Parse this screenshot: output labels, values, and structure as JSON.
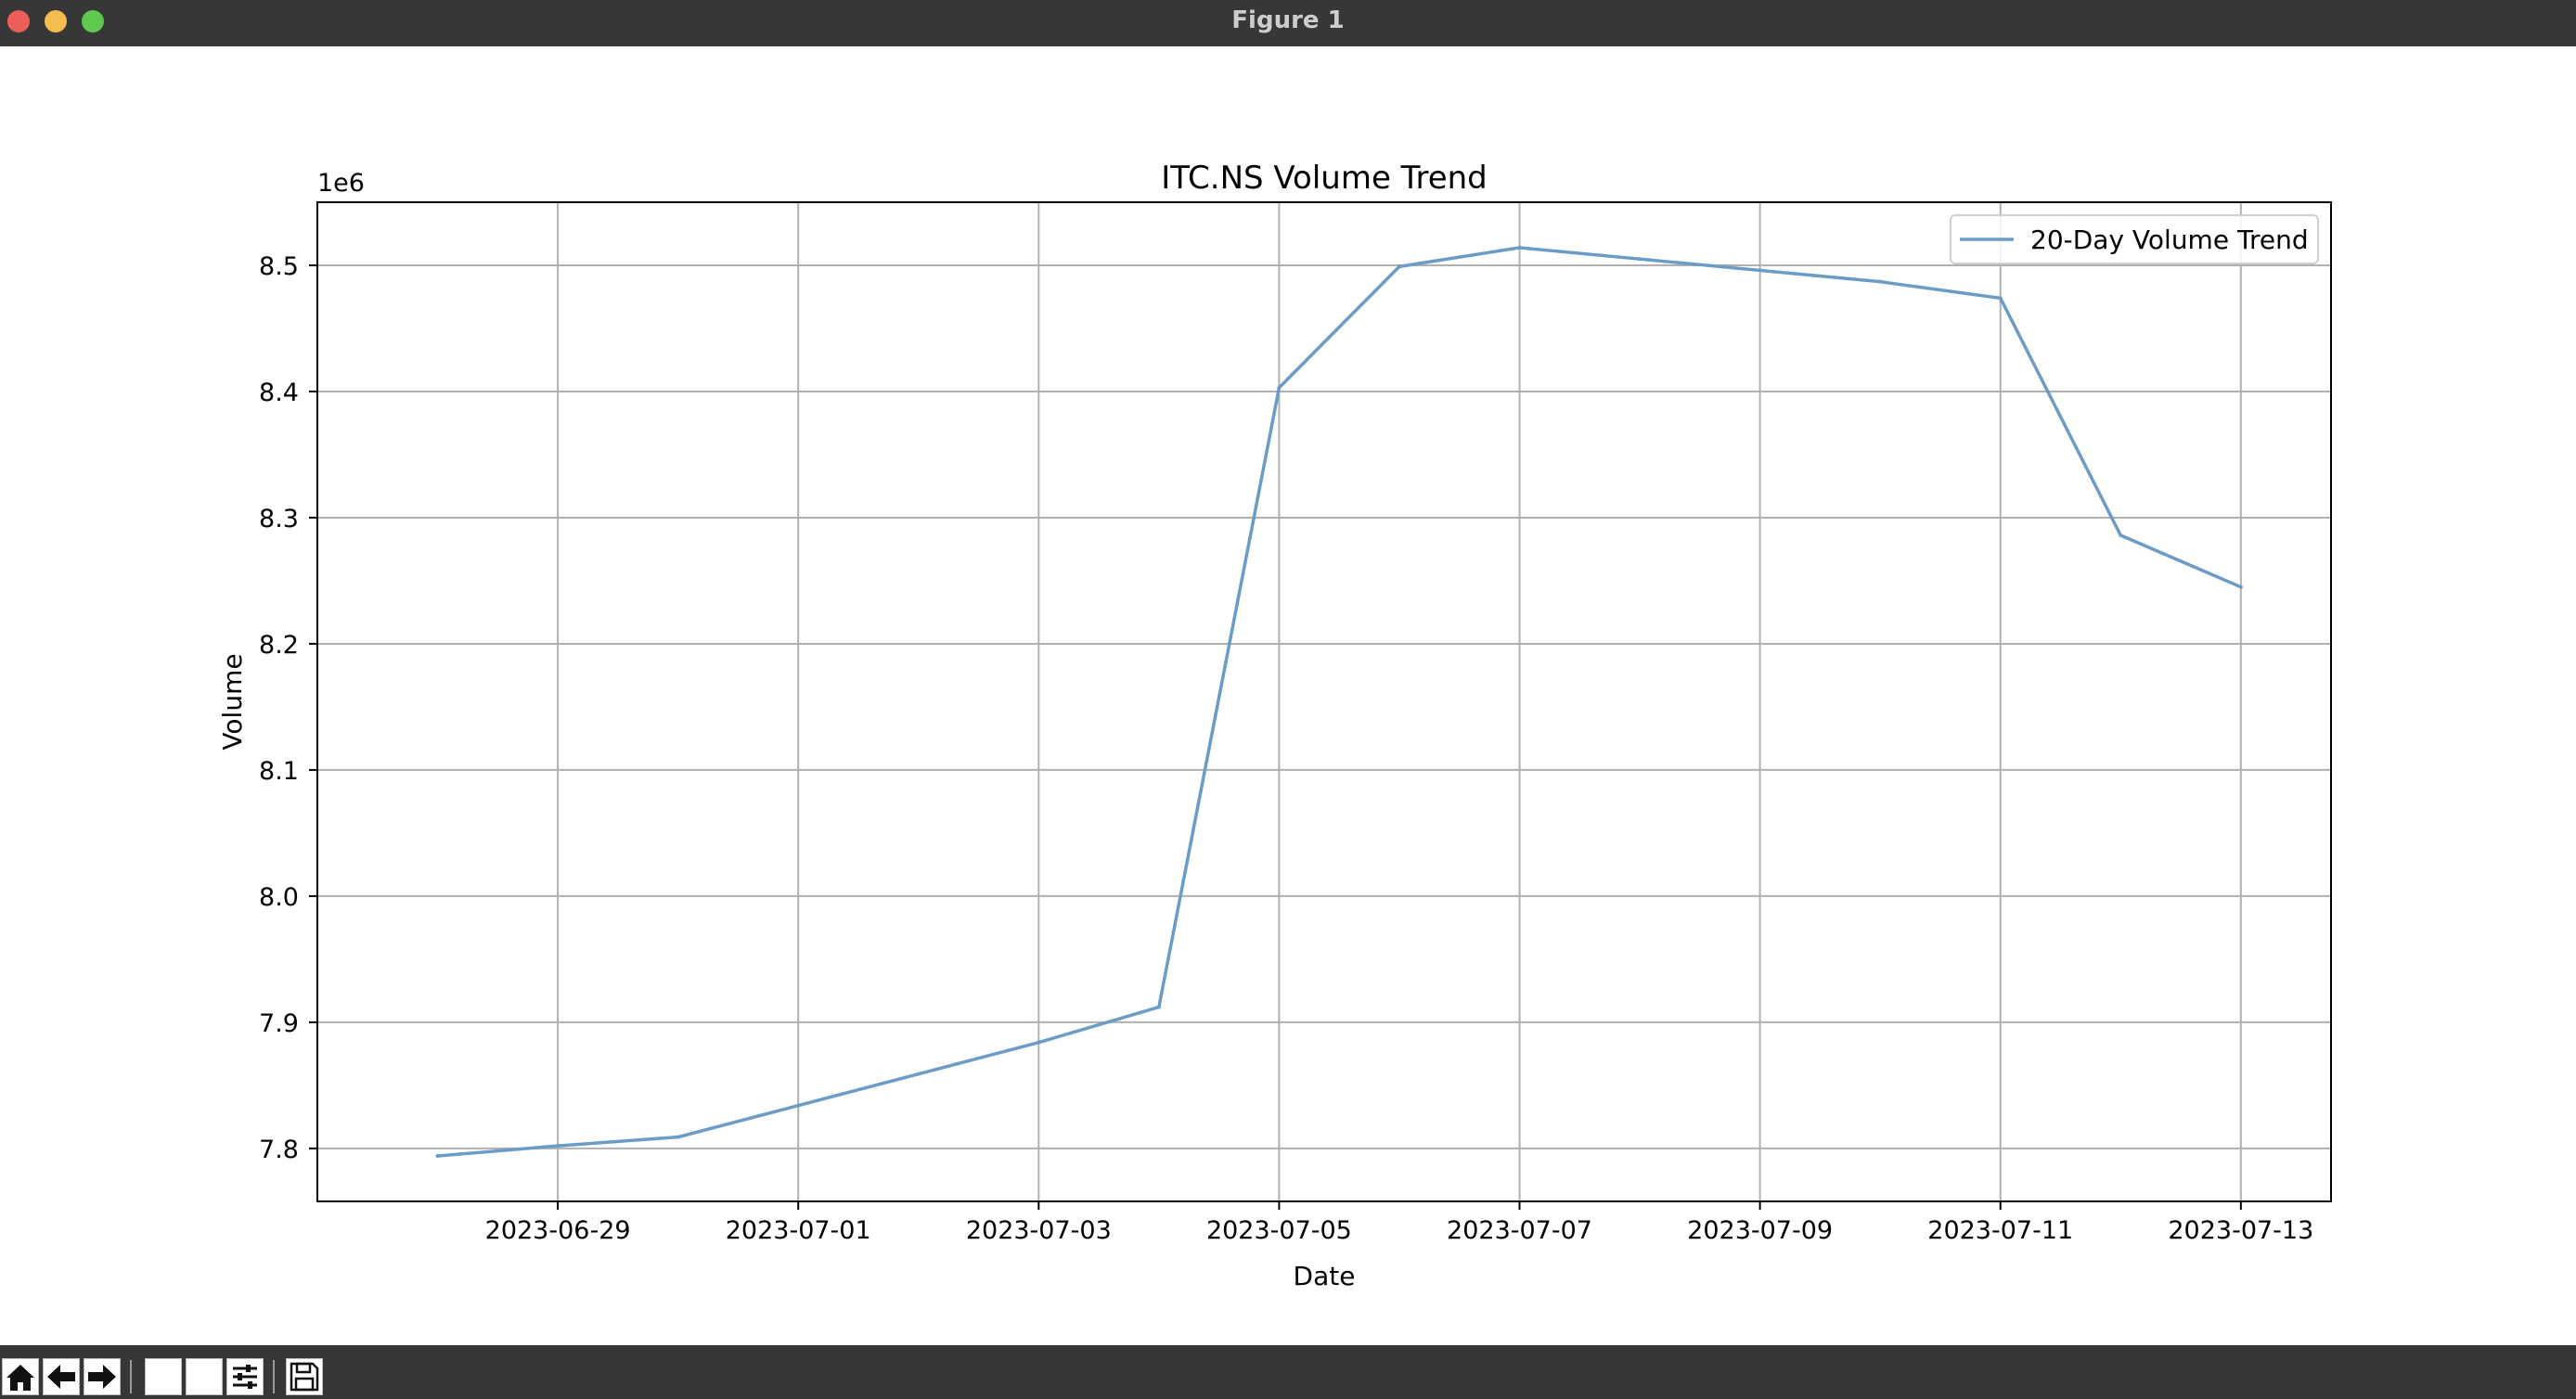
{
  "window": {
    "title": "Figure 1"
  },
  "toolbar": {
    "buttons": [
      "home-icon",
      "back-arrow-icon",
      "forward-arrow-icon",
      "pan-icon",
      "zoom-icon",
      "configure-subplots-icon",
      "save-icon"
    ]
  },
  "chart_data": {
    "type": "line",
    "title": "ITC.NS Volume Trend",
    "xlabel": "Date",
    "ylabel": "Volume",
    "y_offset_label": "1e6",
    "y_scale_factor": 1000000,
    "x_tick_labels": [
      "2023-06-29",
      "2023-07-01",
      "2023-07-03",
      "2023-07-05",
      "2023-07-07",
      "2023-07-09",
      "2023-07-11",
      "2023-07-13"
    ],
    "y_tick_labels": [
      "7.8",
      "7.9",
      "8.0",
      "8.1",
      "8.2",
      "8.3",
      "8.4",
      "8.5"
    ],
    "xlim": [
      "2023-06-27T00:00",
      "2023-07-13T18:00"
    ],
    "ylim": [
      7758000,
      8550000
    ],
    "grid": true,
    "legend_position": "top-right",
    "series": [
      {
        "name": "20-Day Volume Trend",
        "color": "#6b9bc7",
        "x": [
          "2023-06-28",
          "2023-06-29",
          "2023-06-30",
          "2023-07-01",
          "2023-07-02",
          "2023-07-03",
          "2023-07-04",
          "2023-07-05",
          "2023-07-06",
          "2023-07-07",
          "2023-07-08",
          "2023-07-09",
          "2023-07-10",
          "2023-07-11",
          "2023-07-12",
          "2023-07-13"
        ],
        "values": [
          7794000,
          7802000,
          7809000,
          7834000,
          7859000,
          7884000,
          7912000,
          8403000,
          8499000,
          8514000,
          8505000,
          8496000,
          8487000,
          8474000,
          8286000,
          8245000
        ]
      }
    ]
  }
}
